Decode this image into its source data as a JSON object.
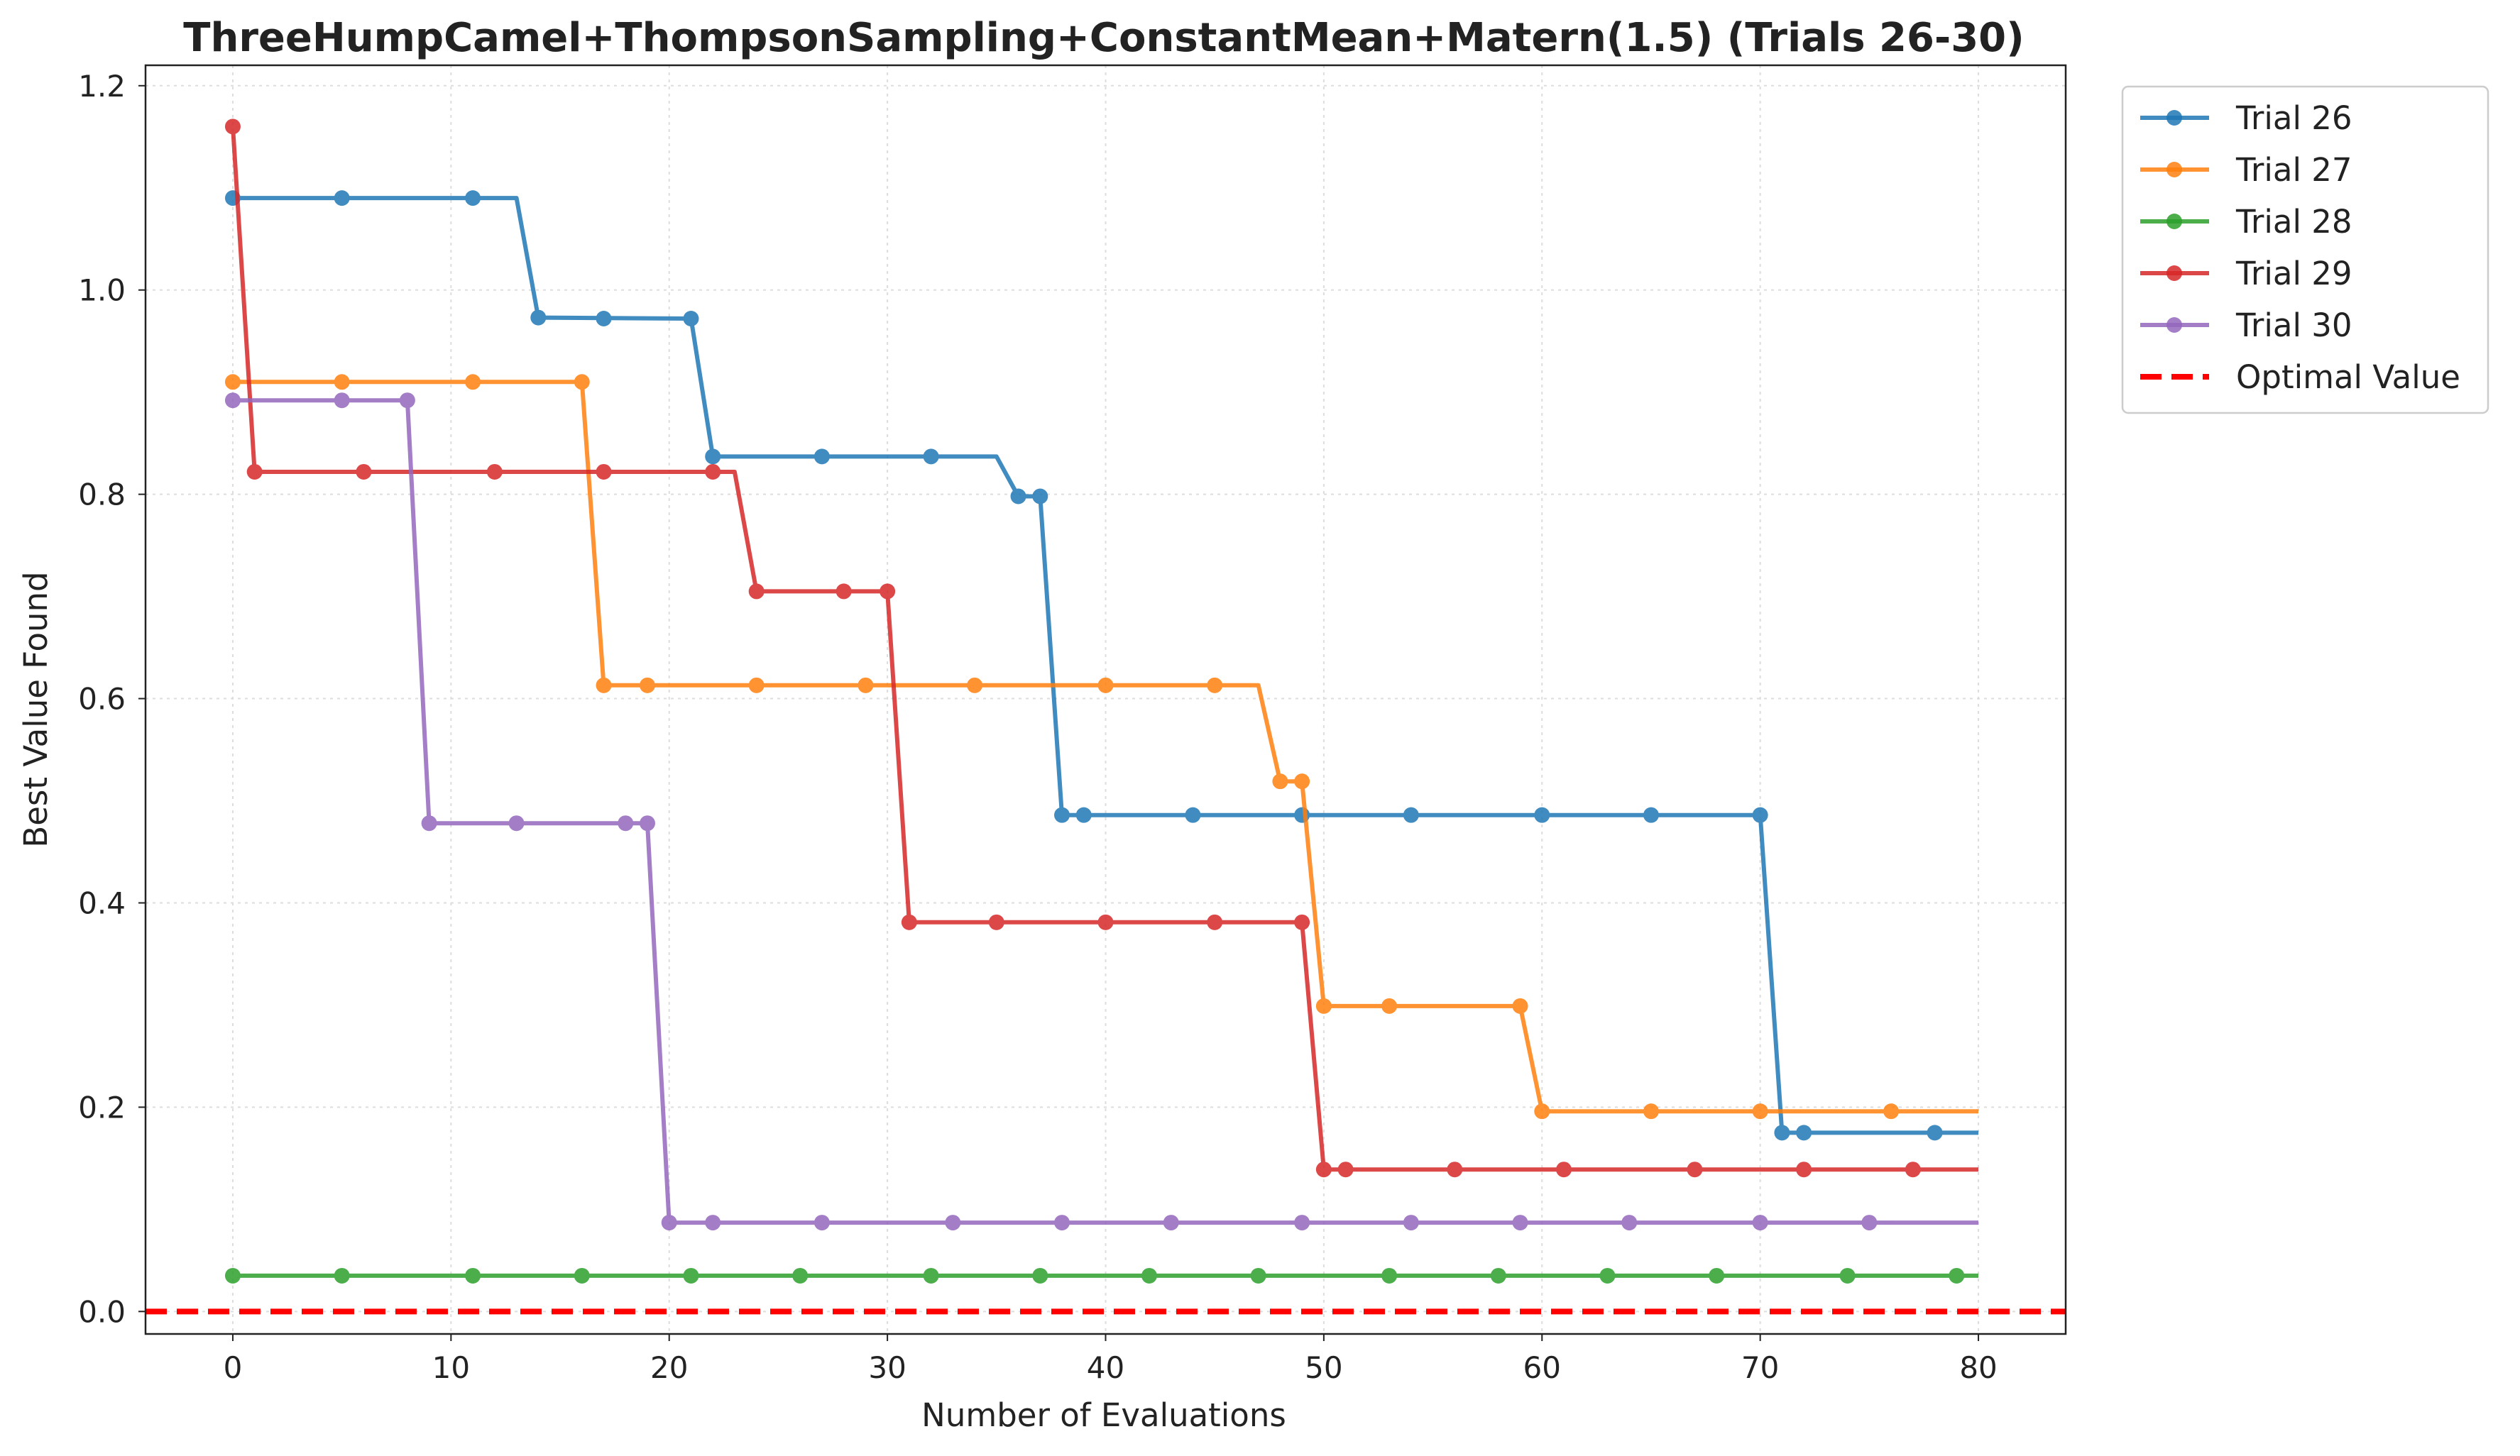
{
  "chart_data": {
    "type": "line",
    "title": "ThreeHumpCamel+ThompsonSampling+ConstantMean+Matern(1.5) (Trials 26-30)",
    "xlabel": "Number of Evaluations",
    "ylabel": "Best Value Found",
    "xlim": [
      -4,
      84
    ],
    "ylim": [
      -0.022,
      1.22
    ],
    "xticks": [
      0,
      10,
      20,
      30,
      40,
      50,
      60,
      70,
      80
    ],
    "yticks": [
      0.0,
      0.2,
      0.4,
      0.6,
      0.8,
      1.0,
      1.2
    ],
    "xtick_labels": [
      "0",
      "10",
      "20",
      "30",
      "40",
      "50",
      "60",
      "70",
      "80"
    ],
    "ytick_labels": [
      "0.0",
      "0.2",
      "0.4",
      "0.6",
      "0.8",
      "1.0",
      "1.2"
    ],
    "grid": true,
    "legend_position": "outside-top-right",
    "series": [
      {
        "name": "Trial 26",
        "color": "#1f77b4",
        "line": [
          [
            0,
            1.09
          ],
          [
            13,
            1.09
          ],
          [
            14,
            0.973
          ],
          [
            21,
            0.972
          ],
          [
            22,
            0.837
          ],
          [
            35,
            0.837
          ],
          [
            36,
            0.798
          ],
          [
            37,
            0.798
          ],
          [
            38,
            0.486
          ],
          [
            70,
            0.486
          ],
          [
            71,
            0.175
          ],
          [
            80,
            0.175
          ]
        ],
        "markers": [
          [
            0,
            1.09
          ],
          [
            5,
            1.09
          ],
          [
            11,
            1.09
          ],
          [
            14,
            0.973
          ],
          [
            17,
            0.972
          ],
          [
            21,
            0.972
          ],
          [
            22,
            0.837
          ],
          [
            27,
            0.837
          ],
          [
            32,
            0.837
          ],
          [
            36,
            0.798
          ],
          [
            37,
            0.798
          ],
          [
            38,
            0.486
          ],
          [
            39,
            0.486
          ],
          [
            44,
            0.486
          ],
          [
            49,
            0.486
          ],
          [
            54,
            0.486
          ],
          [
            60,
            0.486
          ],
          [
            65,
            0.486
          ],
          [
            70,
            0.486
          ],
          [
            71,
            0.175
          ],
          [
            72,
            0.175
          ],
          [
            78,
            0.175
          ]
        ]
      },
      {
        "name": "Trial 27",
        "color": "#ff7f0e",
        "line": [
          [
            0,
            0.91
          ],
          [
            16,
            0.91
          ],
          [
            17,
            0.613
          ],
          [
            47,
            0.613
          ],
          [
            48,
            0.519
          ],
          [
            49,
            0.519
          ],
          [
            50,
            0.299
          ],
          [
            59,
            0.299
          ],
          [
            60,
            0.196
          ],
          [
            80,
            0.196
          ]
        ],
        "markers": [
          [
            0,
            0.91
          ],
          [
            5,
            0.91
          ],
          [
            11,
            0.91
          ],
          [
            16,
            0.91
          ],
          [
            17,
            0.613
          ],
          [
            19,
            0.613
          ],
          [
            24,
            0.613
          ],
          [
            29,
            0.613
          ],
          [
            34,
            0.613
          ],
          [
            40,
            0.613
          ],
          [
            45,
            0.613
          ],
          [
            48,
            0.519
          ],
          [
            49,
            0.519
          ],
          [
            50,
            0.299
          ],
          [
            53,
            0.299
          ],
          [
            59,
            0.299
          ],
          [
            60,
            0.196
          ],
          [
            65,
            0.196
          ],
          [
            70,
            0.196
          ],
          [
            76,
            0.196
          ]
        ]
      },
      {
        "name": "Trial 28",
        "color": "#2ca02c",
        "line": [
          [
            0,
            0.035
          ],
          [
            80,
            0.035
          ]
        ],
        "markers": [
          [
            0,
            0.035
          ],
          [
            5,
            0.035
          ],
          [
            11,
            0.035
          ],
          [
            16,
            0.035
          ],
          [
            21,
            0.035
          ],
          [
            26,
            0.035
          ],
          [
            32,
            0.035
          ],
          [
            37,
            0.035
          ],
          [
            42,
            0.035
          ],
          [
            47,
            0.035
          ],
          [
            53,
            0.035
          ],
          [
            58,
            0.035
          ],
          [
            63,
            0.035
          ],
          [
            68,
            0.035
          ],
          [
            74,
            0.035
          ],
          [
            79,
            0.035
          ]
        ]
      },
      {
        "name": "Trial 29",
        "color": "#d62728",
        "line": [
          [
            0,
            1.16
          ],
          [
            1,
            0.822
          ],
          [
            23,
            0.822
          ],
          [
            24,
            0.705
          ],
          [
            30,
            0.705
          ],
          [
            31,
            0.381
          ],
          [
            49,
            0.381
          ],
          [
            50,
            0.139
          ],
          [
            80,
            0.139
          ]
        ],
        "markers": [
          [
            0,
            1.16
          ],
          [
            1,
            0.822
          ],
          [
            6,
            0.822
          ],
          [
            12,
            0.822
          ],
          [
            17,
            0.822
          ],
          [
            22,
            0.822
          ],
          [
            24,
            0.705
          ],
          [
            28,
            0.705
          ],
          [
            30,
            0.705
          ],
          [
            31,
            0.381
          ],
          [
            35,
            0.381
          ],
          [
            40,
            0.381
          ],
          [
            45,
            0.381
          ],
          [
            49,
            0.381
          ],
          [
            50,
            0.139
          ],
          [
            51,
            0.139
          ],
          [
            56,
            0.139
          ],
          [
            61,
            0.139
          ],
          [
            67,
            0.139
          ],
          [
            72,
            0.139
          ],
          [
            77,
            0.139
          ]
        ]
      },
      {
        "name": "Trial 30",
        "color": "#9467bd",
        "line": [
          [
            0,
            0.892
          ],
          [
            8,
            0.892
          ],
          [
            9,
            0.478
          ],
          [
            19,
            0.478
          ],
          [
            20,
            0.087
          ],
          [
            80,
            0.087
          ]
        ],
        "markers": [
          [
            0,
            0.892
          ],
          [
            5,
            0.892
          ],
          [
            8,
            0.892
          ],
          [
            9,
            0.478
          ],
          [
            13,
            0.478
          ],
          [
            18,
            0.478
          ],
          [
            19,
            0.478
          ],
          [
            20,
            0.087
          ],
          [
            22,
            0.087
          ],
          [
            27,
            0.087
          ],
          [
            33,
            0.087
          ],
          [
            38,
            0.087
          ],
          [
            43,
            0.087
          ],
          [
            49,
            0.087
          ],
          [
            54,
            0.087
          ],
          [
            59,
            0.087
          ],
          [
            64,
            0.087
          ],
          [
            70,
            0.087
          ],
          [
            75,
            0.087
          ]
        ]
      }
    ],
    "reference_line": {
      "name": "Optimal Value",
      "y": 0.0,
      "color": "#ff0000",
      "style": "dashed"
    }
  }
}
